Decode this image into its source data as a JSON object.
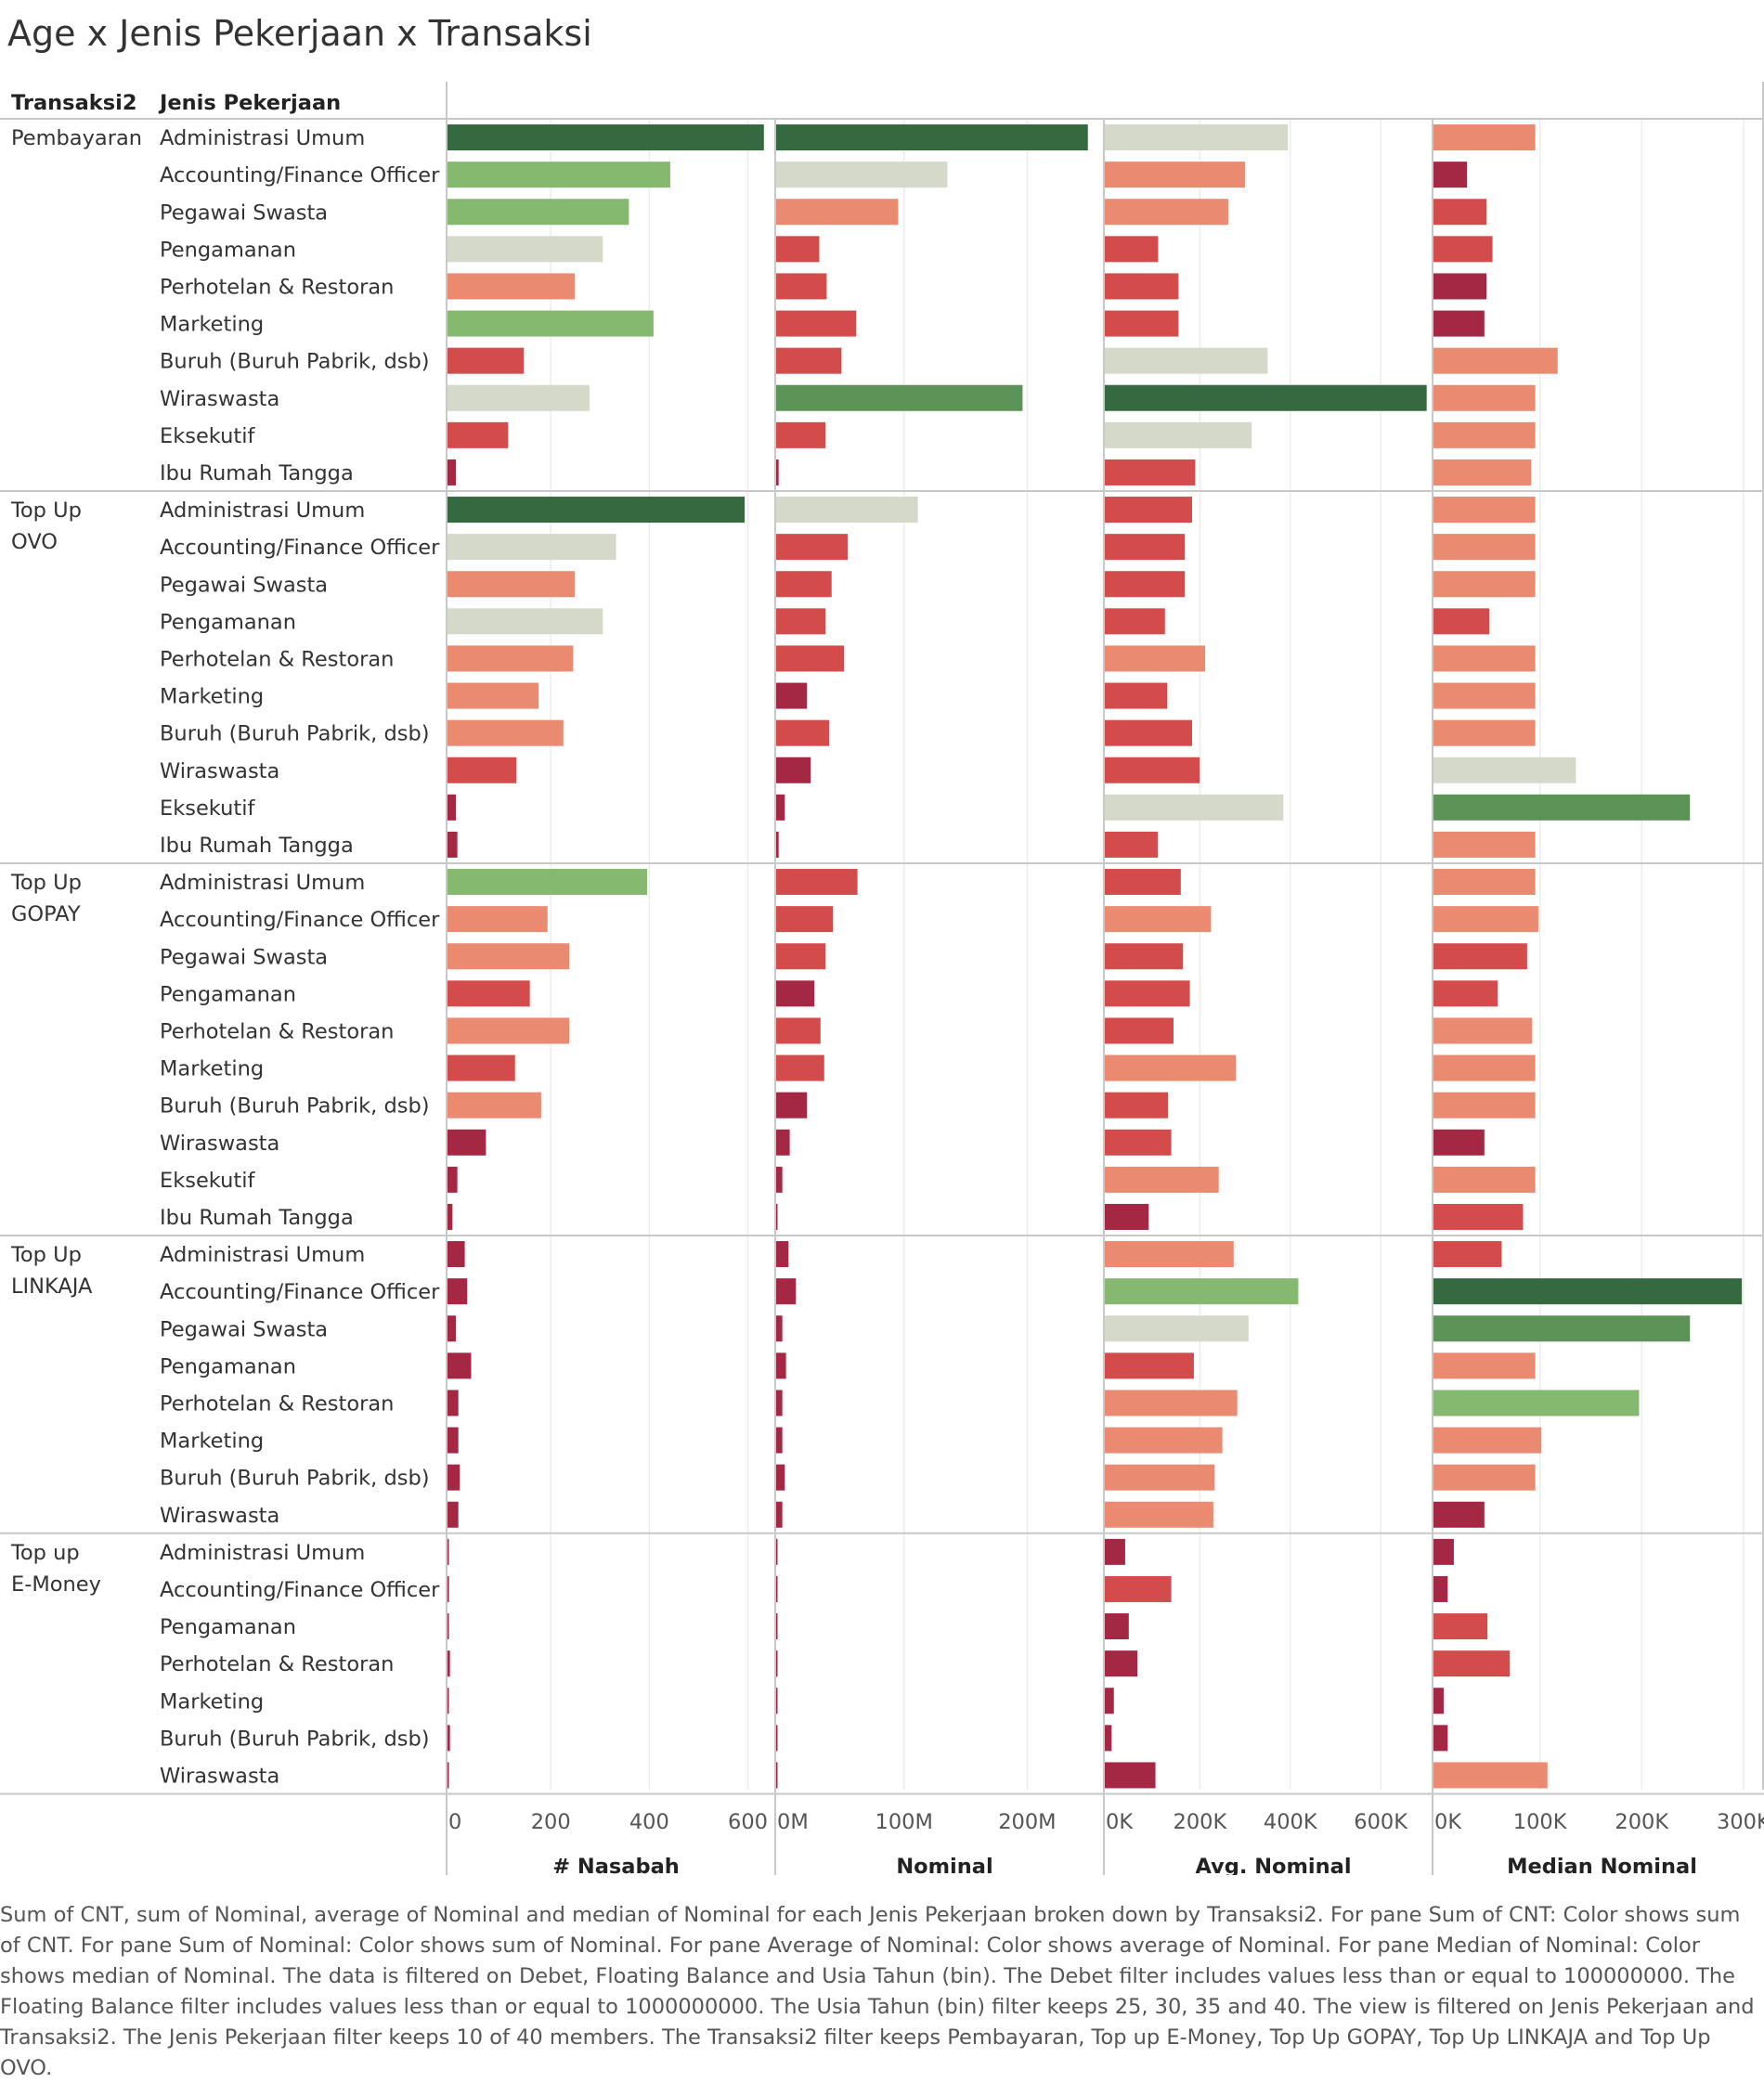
{
  "title": "Age x Jenis Pekerjaan x Transaksi",
  "caption": "Sum of CNT, sum of Nominal, average of Nominal and median of Nominal for each Jenis Pekerjaan broken down by Transaksi2.  For pane Sum of CNT:  Color shows sum of CNT.  For pane Sum of Nominal:  Color shows sum of Nominal.  For pane Average of Nominal:  Color shows average of Nominal.  For pane Median of Nominal:  Color shows median of Nominal. The data is filtered on Debet, Floating Balance and Usia Tahun (bin). The Debet filter includes values less than or equal to 100000000. The Floating Balance filter includes values less than or equal to 1000000000. The Usia Tahun (bin) filter keeps 25, 30, 35 and 40. The view is filtered on Jenis Pekerjaan and Transaksi2. The Jenis Pekerjaan filter keeps 10 of 40 members. The Transaksi2 filter keeps Pembayaran, Top up E-Money, Top Up GOPAY, Top Up LINKAJA and Top Up OVO.",
  "colors": {
    "dark_green": "#356a40",
    "medium_green": "#5b9456",
    "light_green": "#84b96f",
    "neutral": "#d4d9c9",
    "salmon": "#e98a71",
    "red": "#d34b4b",
    "dark_red": "#a42743"
  },
  "chart_data": {
    "type": "bar",
    "orientation": "horizontal",
    "row_headers": [
      "Transaksi2",
      "Jenis Pekerjaan"
    ],
    "measures": [
      {
        "name": "# Nasabah",
        "ticks": [
          "0",
          "200",
          "400",
          "600"
        ],
        "tick_values": [
          0,
          200,
          400,
          600
        ],
        "range": [
          0,
          665
        ]
      },
      {
        "name": "Nominal",
        "ticks": [
          "0M",
          "100M",
          "200M"
        ],
        "tick_values": [
          0,
          100,
          200
        ],
        "unit": "M",
        "range": [
          0,
          266
        ]
      },
      {
        "name": "Avg. Nominal",
        "ticks": [
          "0K",
          "200K",
          "400K",
          "600K"
        ],
        "tick_values": [
          0,
          200,
          400,
          600
        ],
        "unit": "K",
        "range": [
          0,
          725
        ]
      },
      {
        "name": "Median Nominal",
        "ticks": [
          "0K",
          "100K",
          "200K",
          "300K"
        ],
        "tick_values": [
          0,
          100,
          200,
          300
        ],
        "unit": "K",
        "range": [
          0,
          322
        ]
      }
    ],
    "groups": [
      {
        "name": "Pembayaran",
        "rows": [
          {
            "label": "Administrasi Umum",
            "values": [
              642,
              253,
              405,
              100
            ],
            "colors": [
              "dark_green",
              "dark_green",
              "neutral",
              "salmon"
            ]
          },
          {
            "label": "Accounting/Finance Officer",
            "values": [
              452,
              139,
              310,
              33
            ],
            "colors": [
              "light_green",
              "neutral",
              "salmon",
              "dark_red"
            ]
          },
          {
            "label": "Pegawai Swasta",
            "values": [
              368,
              99,
              273,
              52
            ],
            "colors": [
              "light_green",
              "salmon",
              "salmon",
              "red"
            ]
          },
          {
            "label": "Pengamanan",
            "values": [
              315,
              35,
              118,
              58
            ],
            "colors": [
              "neutral",
              "red",
              "red",
              "red"
            ]
          },
          {
            "label": "Perhotelan & Restoran",
            "values": [
              258,
              41,
              163,
              52
            ],
            "colors": [
              "salmon",
              "red",
              "red",
              "dark_red"
            ]
          },
          {
            "label": "Marketing",
            "values": [
              418,
              65,
              163,
              50
            ],
            "colors": [
              "light_green",
              "red",
              "red",
              "dark_red"
            ]
          },
          {
            "label": "Buruh (Buruh Pabrik, dsb)",
            "values": [
              155,
              53,
              360,
              122
            ],
            "colors": [
              "red",
              "red",
              "neutral",
              "salmon"
            ]
          },
          {
            "label": "Wiraswasta",
            "values": [
              288,
              200,
              712,
              100
            ],
            "colors": [
              "neutral",
              "medium_green",
              "dark_green",
              "salmon"
            ]
          },
          {
            "label": "Eksekutif",
            "values": [
              123,
              40,
              325,
              100
            ],
            "colors": [
              "red",
              "red",
              "neutral",
              "salmon"
            ]
          },
          {
            "label": "Ibu Rumah Tangga",
            "values": [
              17,
              2,
              200,
              96
            ],
            "colors": [
              "dark_red",
              "dark_red",
              "red",
              "salmon"
            ]
          }
        ]
      },
      {
        "name": "Top Up OVO",
        "rows": [
          {
            "label": "Administrasi Umum",
            "values": [
              603,
              115,
              193,
              100
            ],
            "colors": [
              "dark_green",
              "neutral",
              "red",
              "salmon"
            ]
          },
          {
            "label": "Accounting/Finance Officer",
            "values": [
              342,
              58,
              177,
              100
            ],
            "colors": [
              "neutral",
              "red",
              "red",
              "salmon"
            ]
          },
          {
            "label": "Pegawai Swasta",
            "values": [
              258,
              45,
              177,
              100
            ],
            "colors": [
              "salmon",
              "red",
              "red",
              "salmon"
            ]
          },
          {
            "label": "Pengamanan",
            "values": [
              315,
              40,
              133,
              55
            ],
            "colors": [
              "neutral",
              "red",
              "red",
              "red"
            ]
          },
          {
            "label": "Perhotelan & Restoran",
            "values": [
              255,
              55,
              222,
              100
            ],
            "colors": [
              "salmon",
              "red",
              "salmon",
              "salmon"
            ]
          },
          {
            "label": "Marketing",
            "values": [
              185,
              25,
              138,
              100
            ],
            "colors": [
              "salmon",
              "dark_red",
              "red",
              "salmon"
            ]
          },
          {
            "label": "Buruh (Buruh Pabrik, dsb)",
            "values": [
              235,
              43,
              193,
              100
            ],
            "colors": [
              "salmon",
              "red",
              "red",
              "salmon"
            ]
          },
          {
            "label": "Wiraswasta",
            "values": [
              140,
              28,
              210,
              140
            ],
            "colors": [
              "red",
              "dark_red",
              "red",
              "neutral"
            ]
          },
          {
            "label": "Eksekutif",
            "values": [
              17,
              7,
              395,
              252
            ],
            "colors": [
              "dark_red",
              "dark_red",
              "neutral",
              "medium_green"
            ]
          },
          {
            "label": "Ibu Rumah Tangga",
            "values": [
              20,
              2,
              117,
              100
            ],
            "colors": [
              "dark_red",
              "dark_red",
              "red",
              "salmon"
            ]
          }
        ]
      },
      {
        "name": "Top Up GOPAY",
        "rows": [
          {
            "label": "Administrasi Umum",
            "values": [
              405,
              66,
              168,
              100
            ],
            "colors": [
              "light_green",
              "red",
              "red",
              "salmon"
            ]
          },
          {
            "label": "Accounting/Finance Officer",
            "values": [
              203,
              46,
              235,
              103
            ],
            "colors": [
              "salmon",
              "red",
              "salmon",
              "salmon"
            ]
          },
          {
            "label": "Pegawai Swasta",
            "values": [
              247,
              40,
              173,
              92
            ],
            "colors": [
              "salmon",
              "red",
              "red",
              "red"
            ]
          },
          {
            "label": "Pengamanan",
            "values": [
              167,
              31,
              188,
              63
            ],
            "colors": [
              "red",
              "dark_red",
              "red",
              "red"
            ]
          },
          {
            "label": "Perhotelan & Restoran",
            "values": [
              247,
              36,
              152,
              97
            ],
            "colors": [
              "salmon",
              "red",
              "red",
              "salmon"
            ]
          },
          {
            "label": "Marketing",
            "values": [
              137,
              39,
              290,
              100
            ],
            "colors": [
              "red",
              "red",
              "salmon",
              "salmon"
            ]
          },
          {
            "label": "Buruh (Buruh Pabrik, dsb)",
            "values": [
              190,
              25,
              140,
              100
            ],
            "colors": [
              "salmon",
              "dark_red",
              "red",
              "salmon"
            ]
          },
          {
            "label": "Wiraswasta",
            "values": [
              78,
              11,
              147,
              50
            ],
            "colors": [
              "dark_red",
              "dark_red",
              "red",
              "dark_red"
            ]
          },
          {
            "label": "Eksekutif",
            "values": [
              20,
              5,
              252,
              100
            ],
            "colors": [
              "dark_red",
              "dark_red",
              "salmon",
              "salmon"
            ]
          },
          {
            "label": "Ibu Rumah Tangga",
            "values": [
              10,
              1,
              97,
              88
            ],
            "colors": [
              "dark_red",
              "dark_red",
              "dark_red",
              "red"
            ]
          }
        ]
      },
      {
        "name": "Top Up LINKAJA",
        "rows": [
          {
            "label": "Administrasi Umum",
            "values": [
              35,
              10,
              285,
              67
            ],
            "colors": [
              "dark_red",
              "dark_red",
              "salmon",
              "red"
            ]
          },
          {
            "label": "Accounting/Finance Officer",
            "values": [
              40,
              16,
              428,
              303
            ],
            "colors": [
              "dark_red",
              "dark_red",
              "light_green",
              "dark_green"
            ]
          },
          {
            "label": "Pegawai Swasta",
            "values": [
              17,
              5,
              318,
              252
            ],
            "colors": [
              "dark_red",
              "dark_red",
              "neutral",
              "medium_green"
            ]
          },
          {
            "label": "Pengamanan",
            "values": [
              48,
              8,
              197,
              100
            ],
            "colors": [
              "dark_red",
              "dark_red",
              "red",
              "salmon"
            ]
          },
          {
            "label": "Perhotelan & Restoran",
            "values": [
              22,
              5,
              293,
              202
            ],
            "colors": [
              "dark_red",
              "dark_red",
              "salmon",
              "light_green"
            ]
          },
          {
            "label": "Marketing",
            "values": [
              22,
              5,
              260,
              106
            ],
            "colors": [
              "dark_red",
              "dark_red",
              "salmon",
              "salmon"
            ]
          },
          {
            "label": "Buruh (Buruh Pabrik, dsb)",
            "values": [
              25,
              7,
              243,
              100
            ],
            "colors": [
              "dark_red",
              "dark_red",
              "salmon",
              "salmon"
            ]
          },
          {
            "label": "Wiraswasta",
            "values": [
              22,
              5,
              240,
              50
            ],
            "colors": [
              "dark_red",
              "dark_red",
              "salmon",
              "dark_red"
            ]
          }
        ]
      },
      {
        "name": "Top up E-Money",
        "rows": [
          {
            "label": "Administrasi Umum",
            "values": [
              2,
              0.5,
              45,
              20
            ],
            "colors": [
              "dark_red",
              "dark_red",
              "dark_red",
              "dark_red"
            ]
          },
          {
            "label": "Accounting/Finance Officer",
            "values": [
              3,
              0.5,
              147,
              14
            ],
            "colors": [
              "dark_red",
              "dark_red",
              "red",
              "dark_red"
            ]
          },
          {
            "label": "Pengamanan",
            "values": [
              2,
              0.5,
              53,
              53
            ],
            "colors": [
              "dark_red",
              "dark_red",
              "dark_red",
              "red"
            ]
          },
          {
            "label": "Perhotelan & Restoran",
            "values": [
              5,
              0.5,
              72,
              75
            ],
            "colors": [
              "dark_red",
              "dark_red",
              "dark_red",
              "red"
            ]
          },
          {
            "label": "Marketing",
            "values": [
              2,
              0.5,
              20,
              10
            ],
            "colors": [
              "dark_red",
              "dark_red",
              "dark_red",
              "dark_red"
            ]
          },
          {
            "label": "Buruh (Buruh Pabrik, dsb)",
            "values": [
              5,
              0.5,
              15,
              14
            ],
            "colors": [
              "dark_red",
              "dark_red",
              "dark_red",
              "dark_red"
            ]
          },
          {
            "label": "Wiraswasta",
            "values": [
              2,
              0.5,
              112,
              112
            ],
            "colors": [
              "dark_red",
              "dark_red",
              "dark_red",
              "salmon"
            ]
          }
        ]
      }
    ]
  }
}
